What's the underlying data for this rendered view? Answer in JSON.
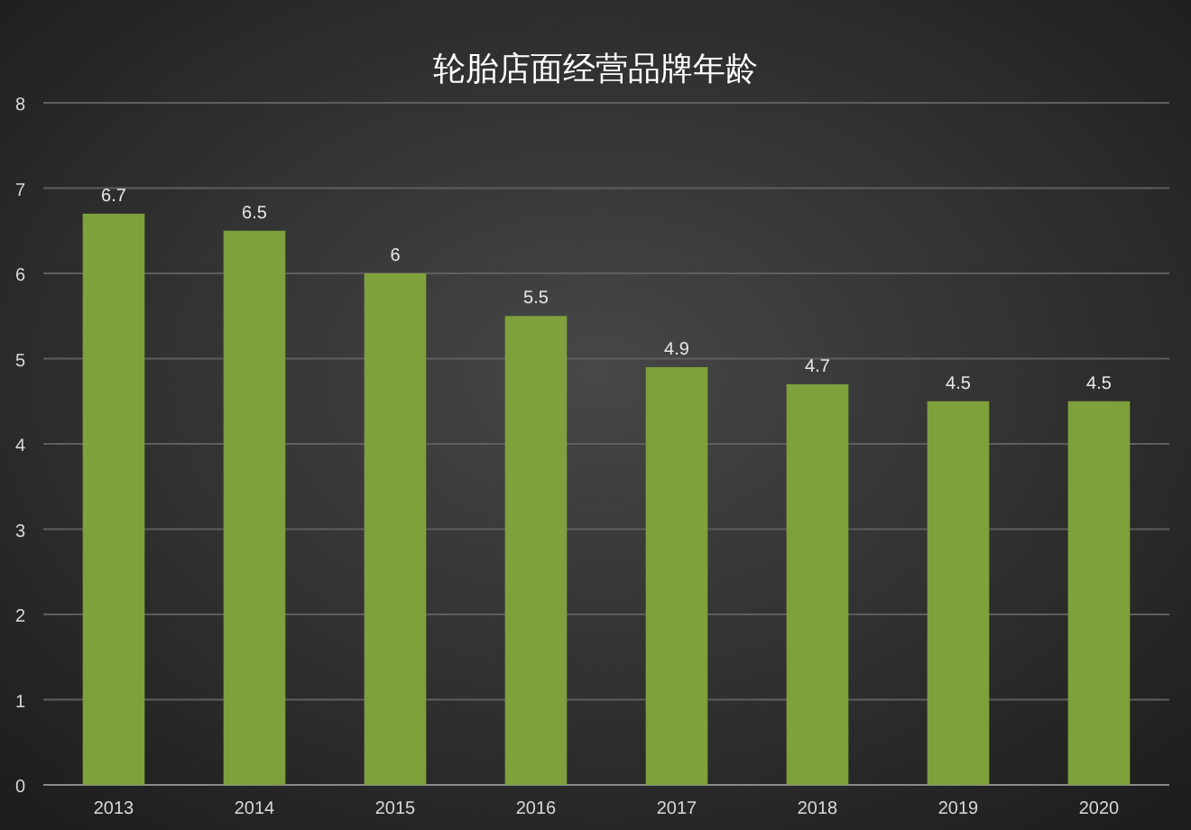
{
  "chart_data": {
    "type": "bar",
    "title": "轮胎店面经营品牌年龄",
    "categories": [
      "2013",
      "2014",
      "2015",
      "2016",
      "2017",
      "2018",
      "2019",
      "2020"
    ],
    "values": [
      6.7,
      6.5,
      6,
      5.5,
      4.9,
      4.7,
      4.5,
      4.5
    ],
    "color": "#7ea13c",
    "ylim": [
      0,
      8
    ],
    "yticks": [
      0,
      1,
      2,
      3,
      4,
      5,
      6,
      7,
      8
    ],
    "grid": "y",
    "data_labels": true
  }
}
